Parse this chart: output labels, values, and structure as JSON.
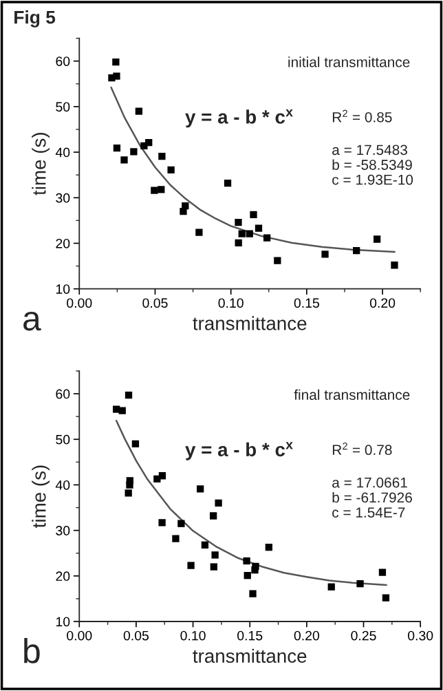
{
  "chart_data": [
    {
      "type": "scatter",
      "title": "Fig 5",
      "xlabel": "transmittance",
      "ylabel": "time (s)",
      "xlim": [
        0,
        0.225
      ],
      "ylim": [
        10,
        65
      ],
      "xticks": [
        {
          "value": 0,
          "label": "0.00"
        },
        {
          "value": 0.05,
          "label": "0.05"
        },
        {
          "value": 0.1,
          "label": "0.10"
        },
        {
          "value": 0.15,
          "label": "0.15"
        },
        {
          "value": 0.2,
          "label": "0.20"
        }
      ],
      "yticks": [
        10,
        20,
        30,
        40,
        50,
        60
      ],
      "grid": false,
      "legend": false,
      "annotations": [
        "initial transmittance",
        "y = a - b * c$^{x}$",
        "R$^{2}$ = 0.85",
        "a = 17.5483\nb = -58.5349\nc = 1.93E-10",
        "a"
      ],
      "series": [
        {
          "color": "#000000",
          "marker": "square",
          "x": [
            0.0214,
            0.0241,
            0.0246,
            0.0248,
            0.0296,
            0.0359,
            0.0393,
            0.0427,
            0.0458,
            0.0495,
            0.054,
            0.0545,
            0.0605,
            0.0686,
            0.0699,
            0.079,
            0.0979,
            0.1049,
            0.105,
            0.1073,
            0.1123,
            0.1149,
            0.1183,
            0.1238,
            0.1307,
            0.1621,
            0.1828,
            0.1964,
            0.2079
          ],
          "values": [
            56.3,
            59.8,
            56.7,
            40.9,
            38.3,
            40.1,
            49.0,
            41.4,
            42.1,
            31.6,
            31.8,
            39.1,
            36.1,
            27.0,
            28.2,
            22.4,
            33.2,
            24.6,
            20.1,
            22.1,
            22.1,
            26.3,
            23.3,
            21.2,
            16.2,
            17.6,
            18.4,
            20.9,
            15.2
          ]
        },
        {
          "type": "line",
          "color": "#555555",
          "x": [
            0.021,
            0.03,
            0.04,
            0.05,
            0.06,
            0.07,
            0.08,
            0.09,
            0.1,
            0.12,
            0.14,
            0.16,
            0.18,
            0.208
          ],
          "values": [
            54.2,
            47.5,
            41.5,
            36.7,
            32.8,
            29.8,
            27.3,
            25.4,
            23.8,
            21.6,
            20.1,
            19.2,
            18.6,
            18.1
          ]
        }
      ]
    },
    {
      "type": "scatter",
      "xlabel": "transmittance",
      "ylabel": "time (s)",
      "xlim": [
        0,
        0.3
      ],
      "ylim": [
        10,
        65
      ],
      "xticks": [
        {
          "value": 0,
          "label": "0.00"
        },
        {
          "value": 0.05,
          "label": "0.05"
        },
        {
          "value": 0.1,
          "label": "0.10"
        },
        {
          "value": 0.15,
          "label": "0.15"
        },
        {
          "value": 0.2,
          "label": "0.20"
        },
        {
          "value": 0.25,
          "label": "0.25"
        },
        {
          "value": 0.3,
          "label": "0.30"
        }
      ],
      "yticks": [
        10,
        20,
        30,
        40,
        50,
        60
      ],
      "grid": false,
      "legend": false,
      "annotations": [
        "final transmittance",
        "y = a - b * c$^{x}$",
        "R$^{2}$ = 0.78",
        "a = 17.0661\nb = -61.7926\nc = 1.54E-7",
        "b"
      ],
      "series": [
        {
          "color": "#000000",
          "marker": "square",
          "x": [
            0.0326,
            0.0378,
            0.0434,
            0.0445,
            0.0443,
            0.0432,
            0.0494,
            0.0684,
            0.073,
            0.0728,
            0.0848,
            0.0896,
            0.0982,
            0.1064,
            0.1105,
            0.1179,
            0.1183,
            0.1194,
            0.1224,
            0.1472,
            0.1479,
            0.1526,
            0.1544,
            0.155,
            0.1667,
            0.2217,
            0.247,
            0.2666,
            0.2696
          ],
          "values": [
            56.6,
            56.3,
            59.7,
            40.9,
            40.0,
            38.2,
            49.0,
            41.3,
            42.0,
            31.7,
            28.2,
            31.5,
            22.3,
            39.1,
            26.8,
            33.2,
            22.0,
            24.6,
            36.0,
            23.3,
            20.1,
            16.1,
            21.3,
            22.1,
            26.3,
            17.6,
            18.3,
            20.8,
            15.2
          ]
        },
        {
          "type": "line",
          "color": "#555555",
          "x": [
            0.0326,
            0.04,
            0.05,
            0.06,
            0.08,
            0.1,
            0.12,
            0.14,
            0.16,
            0.18,
            0.2,
            0.22,
            0.24,
            0.27
          ],
          "values": [
            54.1,
            50.1,
            45.3,
            41.2,
            34.7,
            29.9,
            26.5,
            23.9,
            22.1,
            20.7,
            19.8,
            19.0,
            18.5,
            18.0
          ]
        }
      ]
    }
  ]
}
